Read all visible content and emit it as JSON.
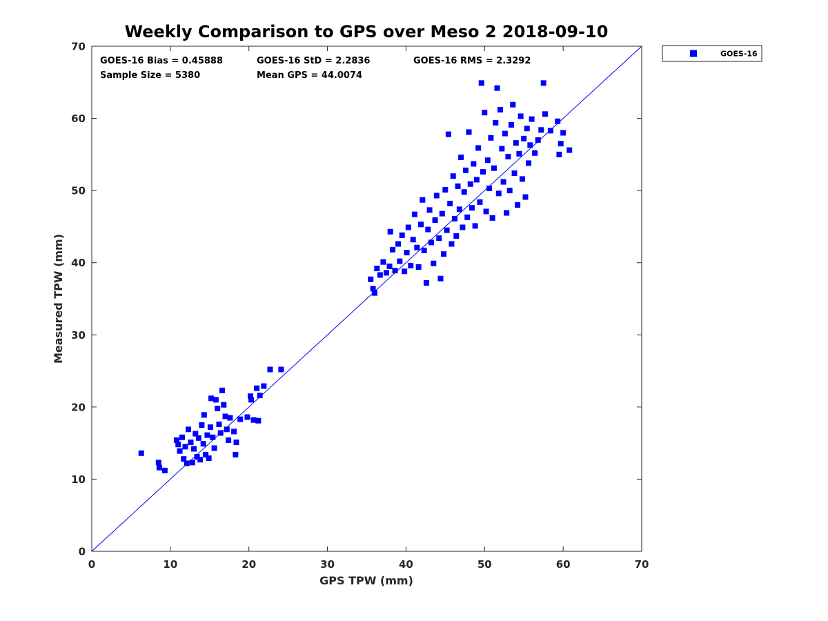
{
  "chart_data": {
    "type": "scatter",
    "title": "Weekly Comparison to GPS over Meso 2 2018-09-10",
    "xlabel": "GPS TPW (mm)",
    "ylabel": "Measured TPW (mm)",
    "xlim": [
      0,
      70
    ],
    "ylim": [
      0,
      70
    ],
    "xticks": [
      "0",
      "10",
      "20",
      "30",
      "40",
      "50",
      "60",
      "70"
    ],
    "yticks": [
      "0",
      "10",
      "20",
      "30",
      "40",
      "50",
      "60",
      "70"
    ],
    "grid": false,
    "legend_position": "outside-top-right",
    "reference_line": {
      "x": [
        0,
        70
      ],
      "y": [
        0,
        70
      ]
    },
    "stats": {
      "bias": "GOES-16 Bias = 0.45888",
      "std": "GOES-16 StD = 2.2836",
      "rms": "GOES-16 RMS = 2.3292",
      "sample_size": "Sample Size = 5380",
      "mean_gps": "Mean GPS = 44.0074"
    },
    "series": [
      {
        "name": "GOES-16",
        "color": "#0000ff",
        "marker": "square",
        "points": [
          [
            6.3,
            13.6
          ],
          [
            8.5,
            12.3
          ],
          [
            8.6,
            11.6
          ],
          [
            9.3,
            11.2
          ],
          [
            10.8,
            15.4
          ],
          [
            11.0,
            14.8
          ],
          [
            11.2,
            13.9
          ],
          [
            11.5,
            15.8
          ],
          [
            11.7,
            12.8
          ],
          [
            11.9,
            14.5
          ],
          [
            12.1,
            12.2
          ],
          [
            12.3,
            16.9
          ],
          [
            12.6,
            15.1
          ],
          [
            12.8,
            12.3
          ],
          [
            13.0,
            14.2
          ],
          [
            13.2,
            16.3
          ],
          [
            13.4,
            13.1
          ],
          [
            13.6,
            15.7
          ],
          [
            13.8,
            12.7
          ],
          [
            14.0,
            17.5
          ],
          [
            14.2,
            14.9
          ],
          [
            14.3,
            18.9
          ],
          [
            14.5,
            13.4
          ],
          [
            14.7,
            16.1
          ],
          [
            14.9,
            12.9
          ],
          [
            15.1,
            17.2
          ],
          [
            15.2,
            21.2
          ],
          [
            15.4,
            15.8
          ],
          [
            15.6,
            14.3
          ],
          [
            15.8,
            21.0
          ],
          [
            16.0,
            19.8
          ],
          [
            16.2,
            17.6
          ],
          [
            16.4,
            16.4
          ],
          [
            16.6,
            22.3
          ],
          [
            16.8,
            20.3
          ],
          [
            17.0,
            18.7
          ],
          [
            17.2,
            16.9
          ],
          [
            17.4,
            15.4
          ],
          [
            17.6,
            18.5
          ],
          [
            18.1,
            16.6
          ],
          [
            18.3,
            13.4
          ],
          [
            18.4,
            15.1
          ],
          [
            18.9,
            18.3
          ],
          [
            19.8,
            18.6
          ],
          [
            20.2,
            21.5
          ],
          [
            20.3,
            21.0
          ],
          [
            20.6,
            18.2
          ],
          [
            21.0,
            22.6
          ],
          [
            21.2,
            18.1
          ],
          [
            21.4,
            21.6
          ],
          [
            21.9,
            22.9
          ],
          [
            22.7,
            25.2
          ],
          [
            24.1,
            25.2
          ],
          [
            35.5,
            37.7
          ],
          [
            35.8,
            36.4
          ],
          [
            36.0,
            35.8
          ],
          [
            36.3,
            39.2
          ],
          [
            36.7,
            38.3
          ],
          [
            37.1,
            40.1
          ],
          [
            37.5,
            38.6
          ],
          [
            37.9,
            39.5
          ],
          [
            38.0,
            44.3
          ],
          [
            38.3,
            41.8
          ],
          [
            38.6,
            38.9
          ],
          [
            39.0,
            42.6
          ],
          [
            39.2,
            40.2
          ],
          [
            39.5,
            43.8
          ],
          [
            39.8,
            38.8
          ],
          [
            40.1,
            41.4
          ],
          [
            40.3,
            44.9
          ],
          [
            40.6,
            39.6
          ],
          [
            40.9,
            43.2
          ],
          [
            41.1,
            46.7
          ],
          [
            41.4,
            42.1
          ],
          [
            41.6,
            39.4
          ],
          [
            41.9,
            45.3
          ],
          [
            42.1,
            48.7
          ],
          [
            42.3,
            41.7
          ],
          [
            42.6,
            37.2
          ],
          [
            42.8,
            44.6
          ],
          [
            43.0,
            47.3
          ],
          [
            43.2,
            42.8
          ],
          [
            43.5,
            39.9
          ],
          [
            43.7,
            45.9
          ],
          [
            43.9,
            49.3
          ],
          [
            44.2,
            43.4
          ],
          [
            44.4,
            37.8
          ],
          [
            44.6,
            46.8
          ],
          [
            44.8,
            41.2
          ],
          [
            45.0,
            50.1
          ],
          [
            45.2,
            44.5
          ],
          [
            45.4,
            57.8
          ],
          [
            45.6,
            48.2
          ],
          [
            45.8,
            42.6
          ],
          [
            46.0,
            52.0
          ],
          [
            46.2,
            46.1
          ],
          [
            46.4,
            43.7
          ],
          [
            46.6,
            50.6
          ],
          [
            46.8,
            47.4
          ],
          [
            47.0,
            54.6
          ],
          [
            47.2,
            44.9
          ],
          [
            47.4,
            49.8
          ],
          [
            47.6,
            52.8
          ],
          [
            47.8,
            46.3
          ],
          [
            48.0,
            58.1
          ],
          [
            48.2,
            50.9
          ],
          [
            48.4,
            47.6
          ],
          [
            48.6,
            53.7
          ],
          [
            48.8,
            45.1
          ],
          [
            49.0,
            51.5
          ],
          [
            49.2,
            55.9
          ],
          [
            49.4,
            48.4
          ],
          [
            49.6,
            64.9
          ],
          [
            49.8,
            52.6
          ],
          [
            50.0,
            60.8
          ],
          [
            50.2,
            47.1
          ],
          [
            50.4,
            54.2
          ],
          [
            50.6,
            50.3
          ],
          [
            50.8,
            57.3
          ],
          [
            51.0,
            46.2
          ],
          [
            51.2,
            53.1
          ],
          [
            51.4,
            59.4
          ],
          [
            51.6,
            64.2
          ],
          [
            51.8,
            49.6
          ],
          [
            52.0,
            61.2
          ],
          [
            52.2,
            55.8
          ],
          [
            52.4,
            51.2
          ],
          [
            52.6,
            57.9
          ],
          [
            52.8,
            46.9
          ],
          [
            53.0,
            54.7
          ],
          [
            53.2,
            50.0
          ],
          [
            53.4,
            59.1
          ],
          [
            53.6,
            61.9
          ],
          [
            53.8,
            52.4
          ],
          [
            54.0,
            56.6
          ],
          [
            54.2,
            48.0
          ],
          [
            54.4,
            55.1
          ],
          [
            54.6,
            60.3
          ],
          [
            54.8,
            51.6
          ],
          [
            55.0,
            57.2
          ],
          [
            55.2,
            49.1
          ],
          [
            55.4,
            58.6
          ],
          [
            55.6,
            53.8
          ],
          [
            55.8,
            56.3
          ],
          [
            56.0,
            59.9
          ],
          [
            56.4,
            55.2
          ],
          [
            56.8,
            57.0
          ],
          [
            57.2,
            58.4
          ],
          [
            57.5,
            64.9
          ],
          [
            57.7,
            60.6
          ],
          [
            58.4,
            58.3
          ],
          [
            59.3,
            59.6
          ],
          [
            59.5,
            55.0
          ],
          [
            59.7,
            56.5
          ],
          [
            60.0,
            58.0
          ],
          [
            60.8,
            55.6
          ]
        ]
      }
    ]
  }
}
